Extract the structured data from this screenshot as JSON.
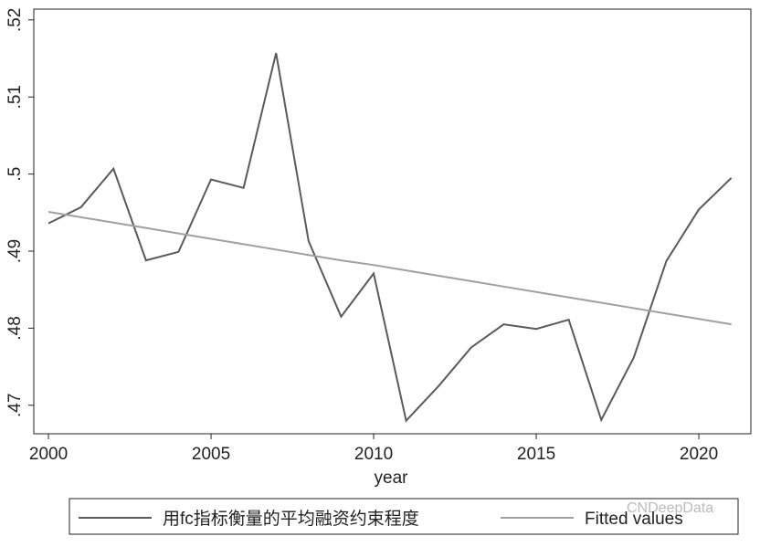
{
  "chart_data": {
    "type": "line",
    "x": [
      2000,
      2001,
      2002,
      2003,
      2004,
      2005,
      2006,
      2007,
      2008,
      2009,
      2010,
      2011,
      2012,
      2013,
      2014,
      2015,
      2016,
      2017,
      2018,
      2019,
      2020,
      2021
    ],
    "series": [
      {
        "name": "用fc指标衡量的平均融资约束程度",
        "color": "#5a5a5a",
        "values": [
          0.4936,
          0.4957,
          0.5007,
          0.4888,
          0.4899,
          0.4993,
          0.4982,
          0.5157,
          0.4913,
          0.4815,
          0.4871,
          0.468,
          0.4725,
          0.4775,
          0.4805,
          0.4799,
          0.4811,
          0.4681,
          0.4762,
          0.4887,
          0.4954,
          0.4995
        ]
      },
      {
        "name": "Fitted values",
        "color": "#a0a0a0",
        "values": [
          0.4951,
          0.4944,
          0.4937,
          0.493,
          0.4923,
          0.4916,
          0.4909,
          0.4902,
          0.4895,
          0.4888,
          0.4882,
          0.4875,
          0.4868,
          0.4861,
          0.4854,
          0.4847,
          0.484,
          0.4833,
          0.4826,
          0.4819,
          0.4812,
          0.4805
        ]
      }
    ],
    "x_label": "year",
    "xlim": [
      1999.55,
      2021.6
    ],
    "xticks": [
      2000,
      2005,
      2010,
      2015,
      2020
    ],
    "ylim": [
      0.4663,
      0.5214
    ],
    "yticks": [
      {
        "value": 0.47,
        "label": ".47"
      },
      {
        "value": 0.48,
        "label": ".48"
      },
      {
        "value": 0.49,
        "label": ".49"
      },
      {
        "value": 0.5,
        "label": ".5"
      },
      {
        "value": 0.51,
        "label": ".51"
      },
      {
        "value": 0.52,
        "label": ".52"
      }
    ],
    "grid": false,
    "watermark": "CNDeepData"
  }
}
